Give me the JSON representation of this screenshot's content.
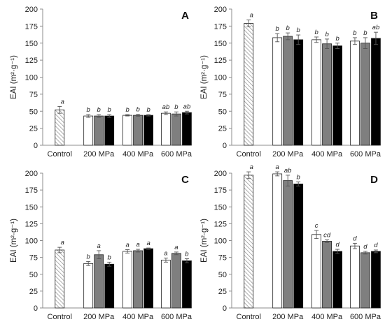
{
  "chart_data": [
    {
      "type": "bar",
      "panel_label": "A",
      "ylabel": "EAI (m²·g⁻¹)",
      "ylim": [
        0,
        200
      ],
      "yticks": [
        0,
        25,
        50,
        75,
        100,
        125,
        150,
        175,
        200
      ],
      "grid": false,
      "categories": [
        "Control",
        "200 MPa",
        "400 MPa",
        "600 MPa"
      ],
      "series": [
        {
          "values": [
            52,
            null,
            null,
            null
          ],
          "errors": [
            5,
            null,
            null,
            null
          ],
          "letters": [
            "a",
            null,
            null,
            null
          ],
          "style": "hatched"
        },
        {
          "values": [
            null,
            43,
            44,
            47
          ],
          "errors": [
            null,
            2,
            1,
            2
          ],
          "letters": [
            null,
            "b",
            "b",
            "ab"
          ],
          "style": "white"
        },
        {
          "values": [
            null,
            43,
            44,
            46
          ],
          "errors": [
            null,
            2,
            1.5,
            3
          ],
          "letters": [
            null,
            "b",
            "b",
            "b"
          ],
          "style": "gray"
        },
        {
          "values": [
            null,
            43,
            44,
            48
          ],
          "errors": [
            null,
            2,
            1,
            2
          ],
          "letters": [
            null,
            "b",
            "b",
            "ab"
          ],
          "style": "black"
        }
      ]
    },
    {
      "type": "bar",
      "panel_label": "B",
      "ylabel": "EAI (m²·g⁻¹)",
      "ylim": [
        0,
        200
      ],
      "yticks": [
        0,
        25,
        50,
        75,
        100,
        125,
        150,
        175,
        200
      ],
      "grid": false,
      "categories": [
        "Control",
        "200 MPa",
        "400 MPa",
        "600 MPa"
      ],
      "series": [
        {
          "values": [
            179,
            null,
            null,
            null
          ],
          "errors": [
            5,
            null,
            null,
            null
          ],
          "letters": [
            "a",
            null,
            null,
            null
          ],
          "style": "hatched"
        },
        {
          "values": [
            null,
            158,
            155,
            153
          ],
          "errors": [
            null,
            6,
            4,
            5
          ],
          "letters": [
            null,
            "b",
            "b",
            "b"
          ],
          "style": "white"
        },
        {
          "values": [
            null,
            160,
            149,
            150
          ],
          "errors": [
            null,
            5,
            7,
            8
          ],
          "letters": [
            null,
            "b",
            "b",
            "b"
          ],
          "style": "gray"
        },
        {
          "values": [
            null,
            155,
            146,
            157
          ],
          "errors": [
            null,
            7,
            4,
            9
          ],
          "letters": [
            null,
            "b",
            "b",
            "ab"
          ],
          "style": "black"
        }
      ]
    },
    {
      "type": "bar",
      "panel_label": "C",
      "ylabel": "EAI (m²·g⁻¹)",
      "ylim": [
        0,
        200
      ],
      "yticks": [
        0,
        25,
        50,
        75,
        100,
        125,
        150,
        175,
        200
      ],
      "grid": false,
      "categories": [
        "Control",
        "200 MPa",
        "400 MPa",
        "600 MPa"
      ],
      "series": [
        {
          "values": [
            86,
            null,
            null,
            null
          ],
          "errors": [
            4,
            null,
            null,
            null
          ],
          "letters": [
            "a",
            null,
            null,
            null
          ],
          "style": "hatched"
        },
        {
          "values": [
            null,
            66,
            84,
            71
          ],
          "errors": [
            null,
            3,
            2.5,
            3
          ],
          "letters": [
            null,
            "b",
            "a",
            "a"
          ],
          "style": "white"
        },
        {
          "values": [
            null,
            79,
            85,
            81
          ],
          "errors": [
            null,
            6,
            2,
            2
          ],
          "letters": [
            null,
            "a",
            "a",
            "a"
          ],
          "style": "gray"
        },
        {
          "values": [
            null,
            65,
            88,
            70
          ],
          "errors": [
            null,
            3,
            1,
            3
          ],
          "letters": [
            null,
            "b",
            "a",
            "b"
          ],
          "style": "black"
        }
      ]
    },
    {
      "type": "bar",
      "panel_label": "D",
      "ylabel": "EAI (m²·g⁻¹)",
      "ylim": [
        0,
        200
      ],
      "yticks": [
        0,
        25,
        50,
        75,
        100,
        125,
        150,
        175,
        200
      ],
      "grid": false,
      "categories": [
        "Control",
        "200 MPa",
        "400 MPa",
        "600 MPa"
      ],
      "series": [
        {
          "values": [
            197,
            null,
            null,
            null
          ],
          "errors": [
            5,
            null,
            null,
            null
          ],
          "letters": [
            "a",
            null,
            null,
            null
          ],
          "style": "hatched"
        },
        {
          "values": [
            null,
            199,
            109,
            92
          ],
          "errors": [
            null,
            3,
            6,
            4
          ],
          "letters": [
            null,
            "a",
            "c",
            "d"
          ],
          "style": "white"
        },
        {
          "values": [
            null,
            189,
            99,
            82
          ],
          "errors": [
            null,
            8,
            2,
            2
          ],
          "letters": [
            null,
            "ab",
            "cd",
            "d"
          ],
          "style": "gray"
        },
        {
          "values": [
            null,
            184,
            84,
            84
          ],
          "errors": [
            null,
            3,
            3,
            2
          ],
          "letters": [
            null,
            "b",
            "d",
            "d"
          ],
          "style": "black"
        }
      ]
    }
  ],
  "colors": {
    "white": "#ffffff",
    "gray": "#7f7f7f",
    "black": "#000000",
    "outline": "#222222",
    "hatch": "#8a8a8a",
    "axis": "#8c8c8c",
    "text": "#222222"
  }
}
